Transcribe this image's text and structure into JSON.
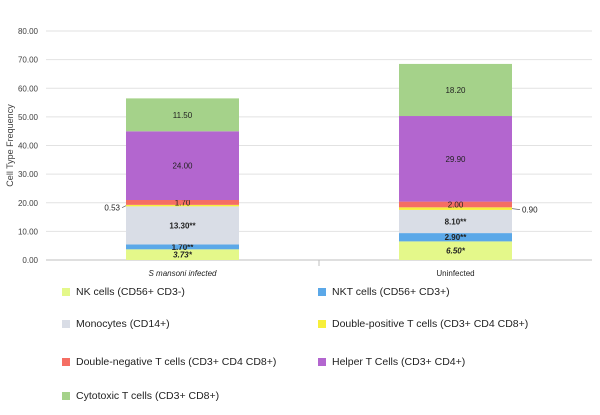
{
  "chart_data": {
    "type": "bar",
    "stacked": true,
    "ylabel": "Cell Type Frequency",
    "ylim": [
      0,
      80
    ],
    "yticks": [
      "0.00",
      "10.00",
      "20.00",
      "30.00",
      "40.00",
      "50.00",
      "60.00",
      "70.00",
      "80.00"
    ],
    "grid": true,
    "categories": [
      "S mansoni infected",
      "Uninfected"
    ],
    "series": [
      {
        "name": "NK cells  (CD56+ CD3-)",
        "color": "#e4f88a",
        "values": [
          3.73,
          6.5
        ],
        "labels": [
          "3.73*",
          "6.50*"
        ]
      },
      {
        "name": "NKT cells (CD56+ CD3+)",
        "color": "#5ba8e8",
        "values": [
          1.7,
          2.9
        ],
        "labels": [
          "1.70**",
          "2.90**"
        ]
      },
      {
        "name": "Monocytes (CD14+)",
        "color": "#d9dde6",
        "values": [
          13.3,
          8.1
        ],
        "labels": [
          "13.30**",
          "8.10**"
        ]
      },
      {
        "name": "Double-positive T cells (CD3+ CD4 CD8+)",
        "color": "#f7ef3a",
        "values": [
          0.53,
          0.9
        ],
        "labels": [
          "0.53",
          "0.90"
        ]
      },
      {
        "name": "Double-negative T cells (CD3+ CD4 CD8+)",
        "color": "#f56e63",
        "values": [
          1.7,
          2.0
        ],
        "labels": [
          "1.70",
          "2.00"
        ]
      },
      {
        "name": "Helper T Cells (CD3+ CD4+)",
        "color": "#b366cf",
        "values": [
          24.0,
          29.9
        ],
        "labels": [
          "24.00",
          "29.90"
        ]
      },
      {
        "name": "Cytotoxic T cells (CD3+ CD8+)",
        "color": "#a5d28a",
        "values": [
          11.5,
          18.2
        ],
        "labels": [
          "11.50",
          "18.20"
        ]
      }
    ],
    "legend_position": "bottom"
  }
}
